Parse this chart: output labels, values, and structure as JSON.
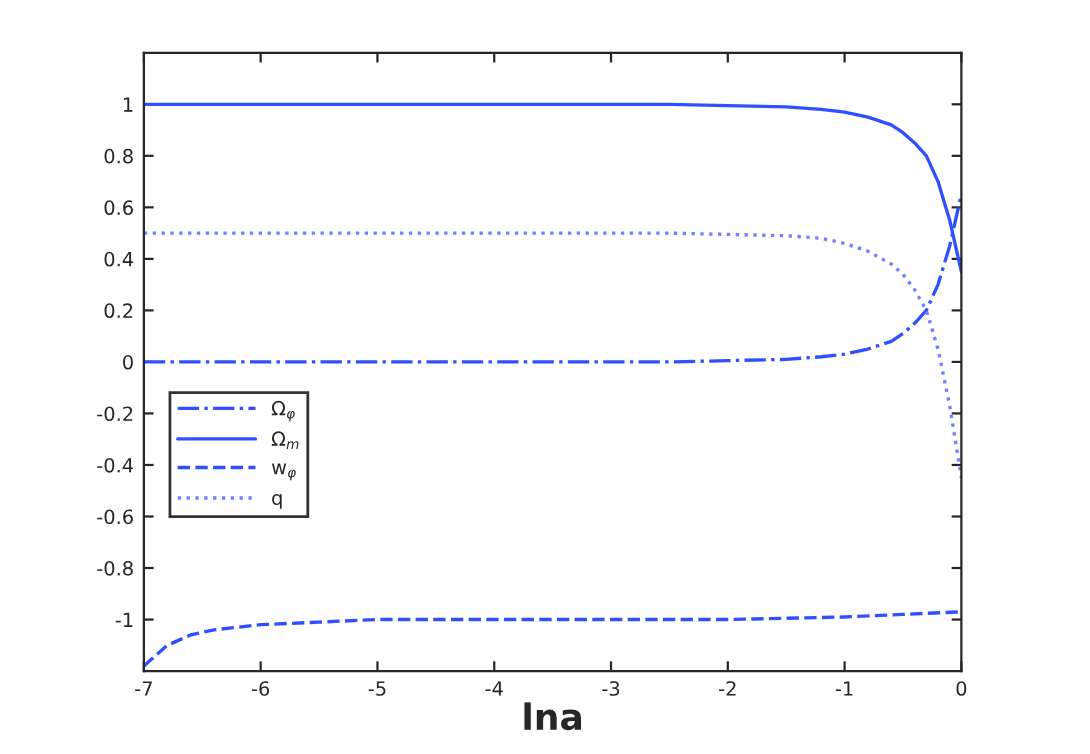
{
  "chart_data": {
    "type": "line",
    "xlabel": "lna",
    "x": [
      -7,
      -6,
      -5,
      -4,
      -3,
      -2.5,
      -2,
      -1.5,
      -1.2,
      -1,
      -0.8,
      -0.6,
      -0.5,
      -0.4,
      -0.3,
      -0.2,
      -0.1,
      0
    ],
    "series": [
      {
        "name": "Ω$_{φ}$",
        "color": "#3050ff",
        "line_style": "dashdot",
        "values": [
          0,
          0,
          0,
          0,
          0,
          0,
          0.005,
          0.01,
          0.02,
          0.03,
          0.05,
          0.08,
          0.11,
          0.15,
          0.2,
          0.3,
          0.45,
          0.65
        ]
      },
      {
        "name": "Ω$_{m}$",
        "color": "#3050ff",
        "line_style": "solid",
        "values": [
          1,
          1,
          1,
          1,
          1,
          1,
          0.995,
          0.99,
          0.98,
          0.97,
          0.95,
          0.92,
          0.89,
          0.85,
          0.8,
          0.7,
          0.55,
          0.35
        ]
      },
      {
        "name": "w$_{φ}$",
        "color": "#3050ff",
        "line_style": "dashed",
        "x": [
          -7,
          -6.8,
          -6.6,
          -6.4,
          -6.2,
          -6,
          -5.5,
          -5,
          -4,
          -3,
          -2,
          -1,
          -0.5,
          0
        ],
        "values": [
          -1.18,
          -1.1,
          -1.06,
          -1.04,
          -1.03,
          -1.02,
          -1.01,
          -1.0,
          -1.0,
          -1.0,
          -1.0,
          -0.99,
          -0.98,
          -0.97
        ]
      },
      {
        "name": "q",
        "color": "#7080ff",
        "line_style": "dotted",
        "values": [
          0.5,
          0.5,
          0.5,
          0.5,
          0.5,
          0.5,
          0.495,
          0.49,
          0.48,
          0.46,
          0.43,
          0.38,
          0.34,
          0.28,
          0.2,
          0.05,
          -0.17,
          -0.45
        ]
      }
    ],
    "xlim": [
      -7,
      0
    ],
    "xticks": [
      -7,
      -6,
      -5,
      -4,
      -3,
      -2,
      -1,
      0
    ],
    "ylim": [
      -1.2,
      1.2
    ],
    "yticks": [
      -1,
      -0.8,
      -0.6,
      -0.4,
      -0.2,
      0,
      0.2,
      0.4,
      0.6,
      0.8,
      1
    ],
    "legend": "left",
    "grid": false
  }
}
